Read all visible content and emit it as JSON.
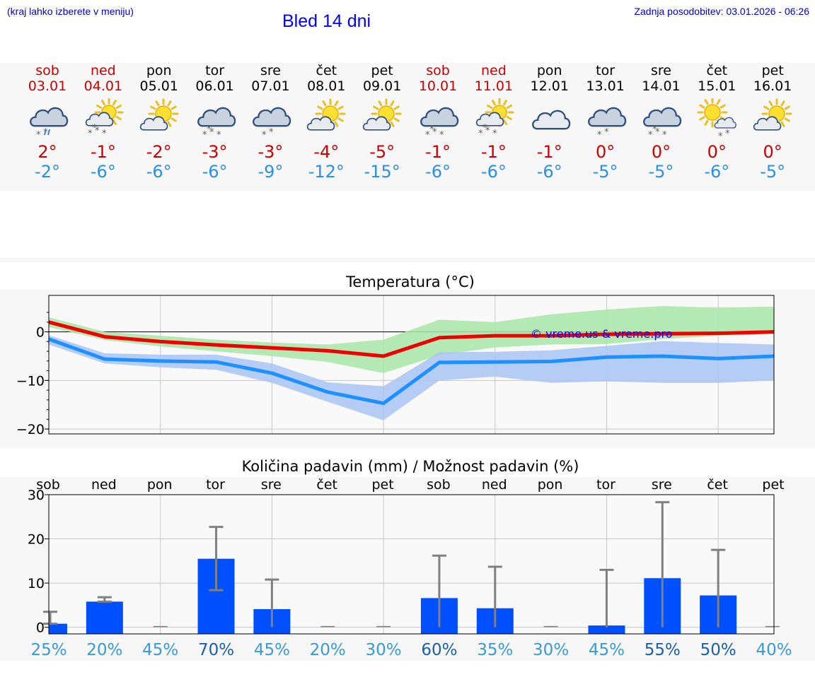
{
  "header": {
    "location_hint": "(kraj lahko izberete v meniju)",
    "title": "Bled 14 dni",
    "last_update": "Zadnja posodobitev: 03.01.2026 - 06:26"
  },
  "days": [
    {
      "name": "sob",
      "date": "03.01",
      "weekend": true,
      "icon": "cloud-snow-rain-icon",
      "tmax": "2°",
      "tmin": "-2°"
    },
    {
      "name": "ned",
      "date": "04.01",
      "weekend": true,
      "icon": "sun-cloud-snow-icon",
      "tmax": "-1°",
      "tmin": "-6°"
    },
    {
      "name": "pon",
      "date": "05.01",
      "weekend": false,
      "icon": "sun-cloud-icon",
      "tmax": "-2°",
      "tmin": "-6°"
    },
    {
      "name": "tor",
      "date": "06.01",
      "weekend": false,
      "icon": "cloud-snow-icon",
      "tmax": "-3°",
      "tmin": "-6°"
    },
    {
      "name": "sre",
      "date": "07.01",
      "weekend": false,
      "icon": "cloud-snow-light-icon",
      "tmax": "-3°",
      "tmin": "-9°"
    },
    {
      "name": "čet",
      "date": "08.01",
      "weekend": false,
      "icon": "sun-cloud-icon",
      "tmax": "-4°",
      "tmin": "-12°"
    },
    {
      "name": "pet",
      "date": "09.01",
      "weekend": false,
      "icon": "sun-cloud-icon",
      "tmax": "-5°",
      "tmin": "-15°"
    },
    {
      "name": "sob",
      "date": "10.01",
      "weekend": true,
      "icon": "cloud-snow-icon",
      "tmax": "-1°",
      "tmin": "-6°"
    },
    {
      "name": "ned",
      "date": "11.01",
      "weekend": true,
      "icon": "sun-cloud-snow-icon",
      "tmax": "-1°",
      "tmin": "-6°"
    },
    {
      "name": "pon",
      "date": "12.01",
      "weekend": false,
      "icon": "cloud-icon",
      "tmax": "-1°",
      "tmin": "-6°"
    },
    {
      "name": "tor",
      "date": "13.01",
      "weekend": false,
      "icon": "cloud-snow-light-icon",
      "tmax": "0°",
      "tmin": "-5°"
    },
    {
      "name": "sre",
      "date": "14.01",
      "weekend": false,
      "icon": "cloud-snow-icon",
      "tmax": "0°",
      "tmin": "-5°"
    },
    {
      "name": "čet",
      "date": "15.01",
      "weekend": false,
      "icon": "sun-small-cloud-snow-icon",
      "tmax": "0°",
      "tmin": "-6°"
    },
    {
      "name": "pet",
      "date": "16.01",
      "weekend": false,
      "icon": "sun-cloud-icon",
      "tmax": "0°",
      "tmin": "-5°"
    }
  ],
  "colors": {
    "weekend": "#cc0000",
    "tmax_line": "#ee0000",
    "tmin_line": "#1e90ff",
    "tmax_band": "#a8e6a8",
    "tmin_band": "#a9c4f5",
    "bar": "#0050ff",
    "error_bar": "#808080",
    "prob_high": "#1a5fa8",
    "prob_low": "#3a9ad9"
  },
  "chart_data": [
    {
      "type": "line",
      "title": "Temperatura (°C)",
      "watermark": "© vreme.us & vreme.pro",
      "ylim": [
        -21,
        7.5
      ],
      "yticks": [
        0,
        -10,
        -20
      ],
      "ytick_labels": [
        "0",
        "−10",
        "−20"
      ],
      "x": [
        0,
        1,
        2,
        3,
        4,
        5,
        6,
        7,
        8,
        9,
        10,
        11,
        12,
        13
      ],
      "series": [
        {
          "name": "max",
          "values": [
            2,
            -1,
            -2,
            -2.7,
            -3.3,
            -3.9,
            -5,
            -1.2,
            -0.8,
            -0.8,
            -0.5,
            -0.4,
            -0.3,
            0
          ]
        },
        {
          "name": "max_low",
          "values": [
            1,
            -1.7,
            -3,
            -4,
            -5,
            -6.2,
            -8.5,
            -4.8,
            -3.2,
            -2.6,
            -2.5,
            -1.5,
            -0.8,
            -0.4
          ]
        },
        {
          "name": "max_high",
          "values": [
            3,
            0,
            -0.8,
            -1.6,
            -2.2,
            -2.6,
            -1.6,
            2.5,
            2,
            3.6,
            4.6,
            5.3,
            5,
            5.2
          ]
        },
        {
          "name": "min",
          "values": [
            -1.5,
            -5.6,
            -6,
            -6.2,
            -8.5,
            -12.4,
            -14.7,
            -6.3,
            -6.2,
            -6.1,
            -5.2,
            -5,
            -5.5,
            -5
          ]
        },
        {
          "name": "min_low",
          "values": [
            -2.6,
            -6.5,
            -7.3,
            -7.8,
            -10.5,
            -14.4,
            -18.2,
            -10,
            -9.2,
            -10.5,
            -10.2,
            -10.5,
            -10.5,
            -10
          ]
        },
        {
          "name": "min_high",
          "values": [
            -0.7,
            -4.4,
            -4.7,
            -4.7,
            -6.5,
            -10.4,
            -11.2,
            -4.2,
            -4.1,
            -3.8,
            -2.9,
            -1.9,
            -2.3,
            -2.6
          ]
        }
      ]
    },
    {
      "type": "bar",
      "title": "Količina padavin (mm) / Možnost padavin (%)",
      "categories": [
        "sob",
        "ned",
        "pon",
        "tor",
        "sre",
        "čet",
        "pet",
        "sob",
        "ned",
        "pon",
        "tor",
        "sre",
        "čet",
        "pet"
      ],
      "values": [
        0.8,
        5.8,
        0,
        15.5,
        4.1,
        0,
        0,
        6.6,
        4.3,
        0,
        0.4,
        11.1,
        7.2,
        0
      ],
      "err_low": [
        0.8,
        5.8,
        0,
        8.4,
        0,
        0,
        0,
        0,
        0,
        0,
        0,
        0,
        0,
        0
      ],
      "err_high": [
        3.5,
        6.8,
        0,
        22.7,
        10.8,
        0,
        0,
        16.2,
        13.7,
        0,
        13,
        28.3,
        17.5,
        0
      ],
      "ylim": [
        -1.5,
        30
      ],
      "yticks": [
        0,
        10,
        20,
        30
      ],
      "ytick_labels": [
        "0",
        "10",
        "20",
        "30"
      ],
      "probability": [
        "25%",
        "20%",
        "45%",
        "70%",
        "45%",
        "20%",
        "30%",
        "60%",
        "35%",
        "30%",
        "45%",
        "55%",
        "50%",
        "40%"
      ],
      "probability_high": [
        false,
        false,
        false,
        true,
        false,
        false,
        false,
        true,
        false,
        false,
        false,
        true,
        true,
        false
      ]
    }
  ]
}
